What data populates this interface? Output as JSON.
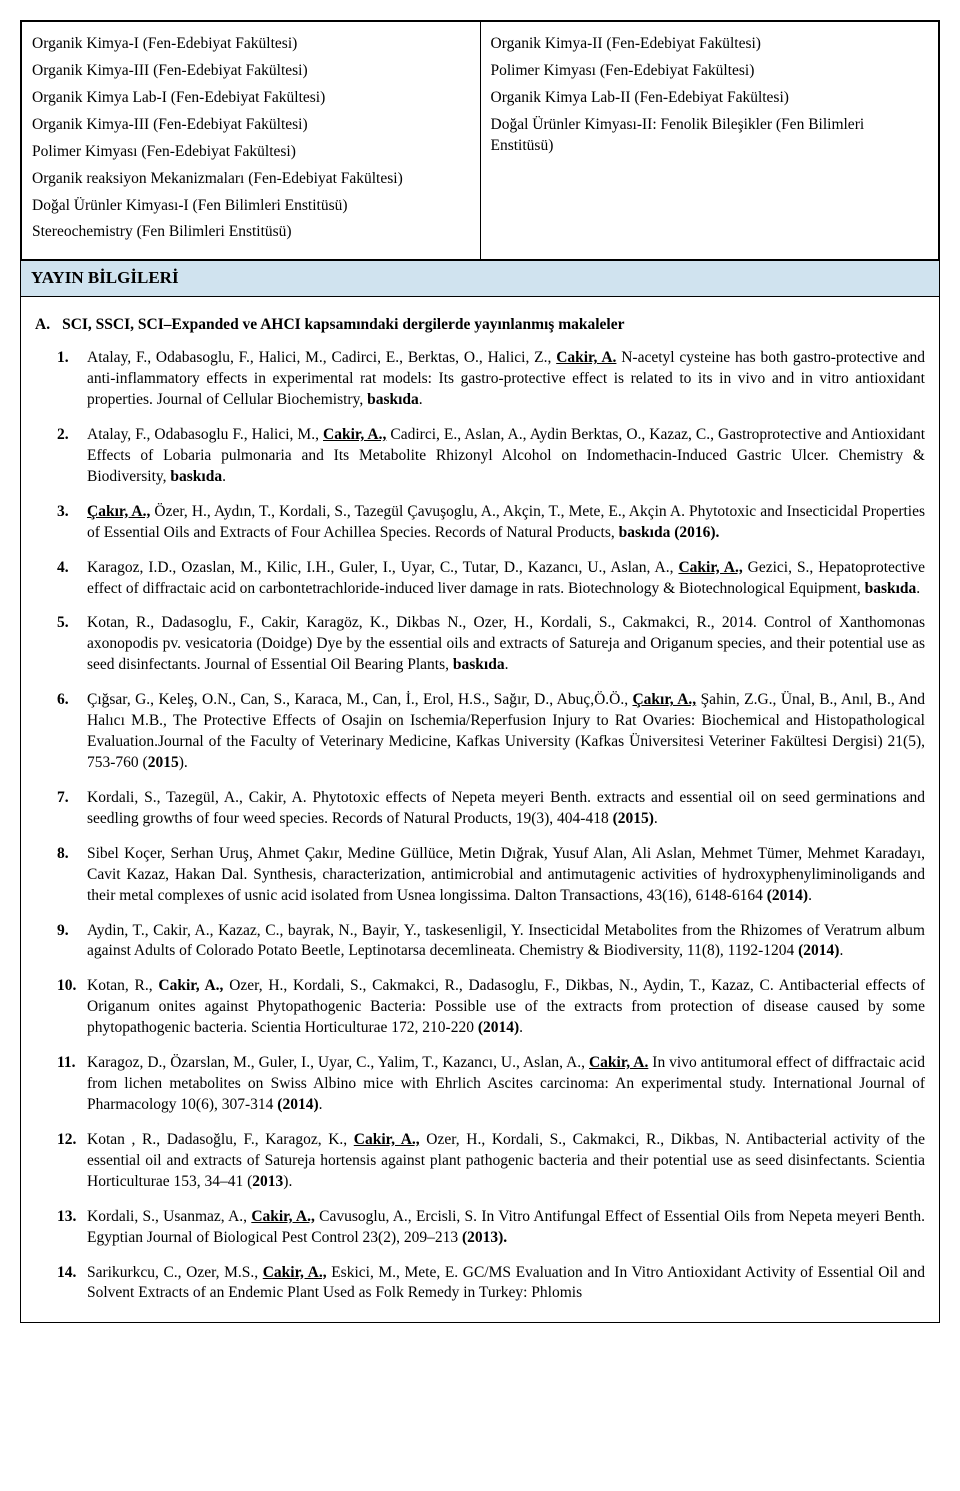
{
  "colors": {
    "header_bg": "#d0e3ef",
    "border": "#000000",
    "text": "#000000",
    "page_bg": "#ffffff"
  },
  "topTable": {
    "left": [
      "Organik Kimya-I (Fen-Edebiyat Fakültesi)",
      "Organik Kimya-III (Fen-Edebiyat Fakültesi)",
      "Organik Kimya Lab-I (Fen-Edebiyat Fakültesi)",
      "Organik Kimya-III (Fen-Edebiyat Fakültesi)",
      "Polimer Kimyası (Fen-Edebiyat Fakültesi)",
      "Organik reaksiyon Mekanizmaları (Fen-Edebiyat Fakültesi)",
      "Doğal Ürünler Kimyası-I (Fen Bilimleri Enstitüsü)",
      "Stereochemistry (Fen Bilimleri Enstitüsü)"
    ],
    "right": [
      "Organik Kimya-II (Fen-Edebiyat Fakültesi)",
      "Polimer Kimyası (Fen-Edebiyat Fakültesi)",
      "Organik Kimya Lab-II (Fen-Edebiyat Fakültesi)",
      "Doğal Ürünler Kimyası-II: Fenolik Bileşikler (Fen Bilimleri Enstitüsü)"
    ]
  },
  "sectionHeader": "YAYIN BİLGİLERİ",
  "sectA": {
    "lead": "A.",
    "title": "SCI, SSCI, SCI–Expanded ve AHCI kapsamındaki dergilerde yayınlanmış makaleler"
  },
  "pubs": [
    {
      "n": "1.",
      "html": "Atalay, F., Odabasoglu, F., Halici, M., Cadirci, E., Berktas, O., Halici, Z., <span class='b u'>Cakir, A.</span> N-acetyl cysteine has both gastro-protective and anti-inflammatory effects in experimental rat models: Its gastro-protective effect is related to its in vivo and in vitro antioxidant properties. Journal of Cellular Biochemistry, <span class='b'>baskıda</span>."
    },
    {
      "n": "2.",
      "html": "Atalay, F., Odabasoglu F., Halici, M., <span class='b u'>Cakir, A.,</span>  Cadirci, E., Aslan, A., Aydin Berktas, O., Kazaz, C., Gastroprotective and Antioxidant Effects of Lobaria pulmonaria and Its Metabolite Rhizonyl Alcohol on Indomethacin-Induced Gastric Ulcer. Chemistry & Biodiversity, <span class='b'>baskıda</span>."
    },
    {
      "n": "3.",
      "html": "<span class='b u'>Çakır, A.,</span> Özer, H., Aydın, T., Kordali, S., Tazegül Çavuşoglu, A., Akçin, T., Mete, E., Akçin A. Phytotoxic and Insecticidal Properties of Essential Oils and Extracts of Four Achillea Species. Records of Natural Products, <span class='b'>baskıda (2016).</span>"
    },
    {
      "n": "4.",
      "html": "Karagoz, I.D., Ozaslan, M., Kilic, I.H., Guler, I., Uyar, C., Tutar, D., Kazancı, U., Aslan, A., <span class='b u'>Cakir, A.,</span> Gezici, S., Hepatoprotective effect of diffractaic acid on carbontetrachloride-induced liver damage in rats. Biotechnology & Biotechnological Equipment, <span class='b'>baskıda</span>."
    },
    {
      "n": "5.",
      "html": "Kotan, R., Dadasoglu, F., Cakir, Karagöz, K., Dikbas N., Ozer, H., Kordali, S., Cakmakci, R., 2014. Control of Xanthomonas axonopodis pv. vesicatoria (Doidge) Dye by the essential oils and extracts of Satureja and Origanum species, and their potential use as seed disinfectants. Journal of Essential Oil Bearing Plants, <span class='b'>baskıda</span>."
    },
    {
      "n": "6.",
      "html": "Çığsar, G.,  Keleş, O.N., Can, S., Karaca, M., Can, İ., Erol, H.S., Sağır, D., Abuç,Ö.Ö.,  <span class='b u'>Çakır, A.,</span> Şahin, Z.G., Ünal, B., Anıl, B., And Halıcı M.B., The Protective Effects of Osajin on Ischemia/Reperfusion Injury to Rat Ovaries: Biochemical and Histopathological Evaluation.Journal of the Faculty of Veterinary Medicine, Kafkas University (Kafkas Üniversitesi Veteriner Fakültesi Dergisi) 21(5), 753-760 (<span class='b'>2015</span>)."
    },
    {
      "n": "7.",
      "html": "Kordali, S., Tazegül, A., Cakir, A. Phytotoxic effects of Nepeta meyeri Benth. extracts and essential oil on seed germinations and seedling growths of four weed species. Records of Natural Products, 19(3), 404-418 <span class='b'>(2015)</span>."
    },
    {
      "n": "8.",
      "html": "Sibel Koçer, Serhan Uruş, Ahmet Çakır, Medine Güllüce, Metin Dığrak, Yusuf Alan, Ali Aslan, Mehmet Tümer, Mehmet Karadayı, Cavit Kazaz, Hakan Dal. Synthesis, characterization, antimicrobial and antimutagenic activities of hydroxyphenyliminoligands and their metal complexes of usnic acid isolated from Usnea longissima. Dalton Transactions, 43(16), 6148-6164 <span class='b'>(2014)</span>."
    },
    {
      "n": "9.",
      "html": "Aydin, T., Cakir, A., Kazaz, C., bayrak, N., Bayir, Y., taskesenligil, Y. Insecticidal Metabolites from the Rhizomes of Veratrum album against Adults of Colorado Potato Beetle, Leptinotarsa decemlineata. Chemistry & Biodiversity, 11(8), 1192-1204 <span class='b'>(2014)</span>."
    },
    {
      "n": "10.",
      "html": "Kotan, R., <span class='b'>Cakir, A.,</span> Ozer, H., Kordali, S., Cakmakci, R., Dadasoglu, F., Dikbas, N., Aydin, T., Kazaz, C. Antibacterial effects of Origanum onites against Phytopathogenic Bacteria: Possible use of the extracts from protection of disease caused by some phytopathogenic bacteria. Scientia Horticulturae 172, 210-220 <span class='b'>(2014)</span>."
    },
    {
      "n": "11.",
      "html": "Karagoz, D., Özarslan, M., Guler, I., Uyar, C., Yalim, T., Kazancı, U., Aslan, A., <span class='b u'>Cakir, A.</span> In vivo antitumoral effect of diffractaic acid from lichen metabolites on Swiss Albino mice with Ehrlich Ascites carcinoma: An experimental study. International Journal of Pharmacology 10(6), 307-314 <span class='b'>(2014)</span>."
    },
    {
      "n": "12.",
      "html": "Kotan , R., Dadasoğlu, F., Karagoz, K., <span class='b u'>Cakir, A.,</span>  Ozer,  H., Kordali, S., Cakmakci, R., Dikbas, N. Antibacterial activity of the essential oil and extracts of Satureja hortensis against plant pathogenic bacteria and their potential use as seed disinfectants. Scientia Horticulturae 153, 34–41 (<span class='b'>2013</span>)."
    },
    {
      "n": "13.",
      "html": "Kordali, S., Usanmaz, A., <span class='b u'>Cakir, A.,</span> Cavusoglu, A., Ercisli, S. In Vitro Antifungal Effect of Essential Oils from Nepeta meyeri Benth. Egyptian Journal of Biological Pest Control 23(2), 209–213 <span class='b'>(2013).</span>"
    },
    {
      "n": "14.",
      "html": "Sarikurkcu, C., Ozer, M.S., <span class='b u'>Cakir, A.,</span> Eskici, M., Mete, E. GC/MS Evaluation and In Vitro Antioxidant Activity of Essential Oil and Solvent Extracts of an Endemic Plant Used as Folk Remedy in Turkey: Phlomis"
    }
  ]
}
